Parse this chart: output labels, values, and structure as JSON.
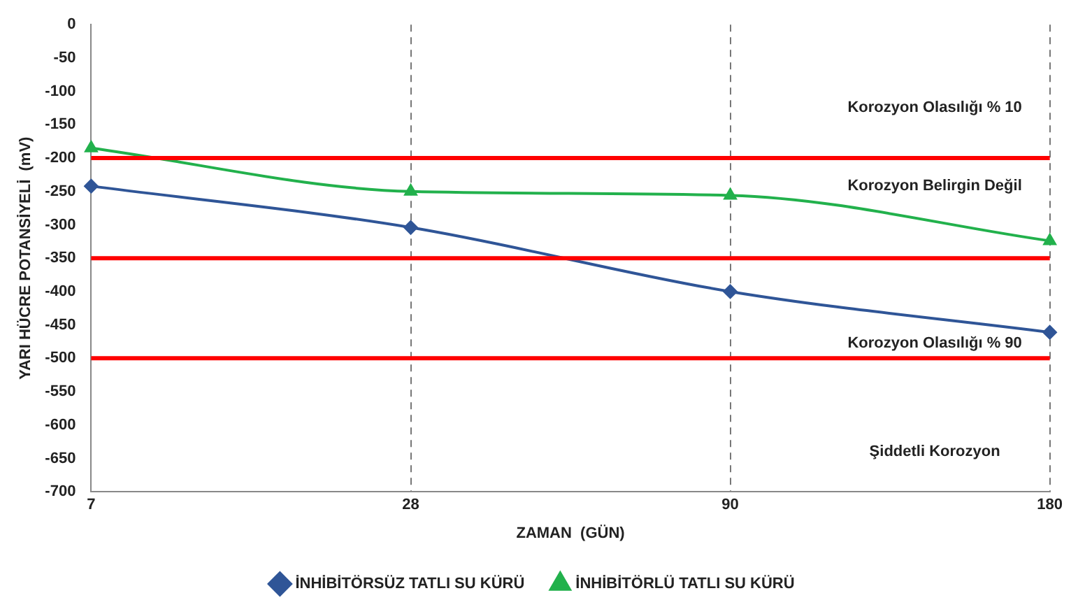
{
  "chart_data": {
    "type": "line",
    "xlabel": "ZAMAN  (GÜN)",
    "ylabel": "YARI HÜCRE POTANSİYELİ  (mV)",
    "categories": [
      "7",
      "28",
      "90",
      "180"
    ],
    "series": [
      {
        "name": "İNHİBİTÖRSÜZ TATLI SU KÜRÜ",
        "color": "#2f5597",
        "values": [
          -242,
          -304,
          -400,
          -461
        ],
        "marker": "diamond"
      },
      {
        "name": "İNHİBİTÖRLÜ TATLI SU KÜRÜ",
        "color": "#22b14c",
        "values": [
          -185,
          -250,
          -256,
          -324
        ],
        "marker": "triangle"
      }
    ],
    "ylim": [
      -700,
      0
    ],
    "yticks": [
      0,
      -50,
      -100,
      -150,
      -200,
      -250,
      -300,
      -350,
      -400,
      -450,
      -500,
      -550,
      -600,
      -650,
      -700
    ],
    "ref_lines": [
      {
        "axis": "y",
        "value": -200,
        "color": "#ff0000"
      },
      {
        "axis": "y",
        "value": -350,
        "color": "#ff0000"
      },
      {
        "axis": "y",
        "value": -500,
        "color": "#ff0000"
      }
    ],
    "annotations": [
      "Korozyon Olasılığı % 10",
      "Korozyon Belirgin Değil",
      "Korozyon Olasılığı % 90",
      "Şiddetli Korozyon"
    ],
    "grid": "x",
    "line_style": "solid",
    "legend": "bottom"
  }
}
